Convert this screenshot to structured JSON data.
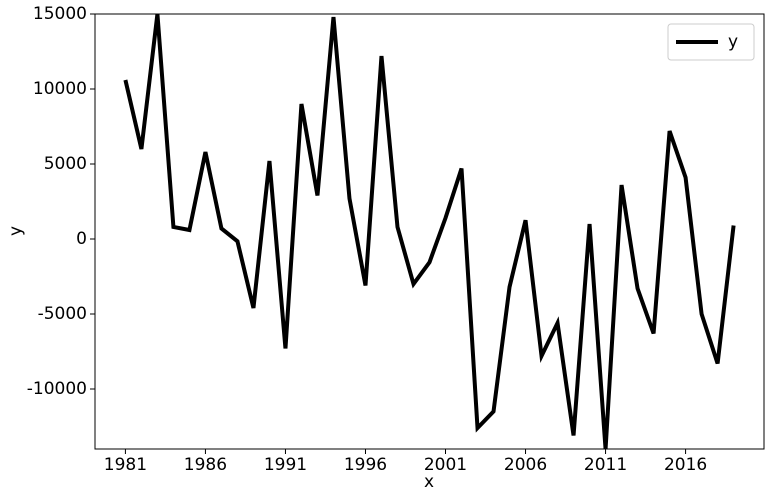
{
  "chart_data": {
    "type": "line",
    "xlabel": "x",
    "ylabel": "y",
    "x": [
      1981,
      1982,
      1983,
      1984,
      1985,
      1986,
      1987,
      1988,
      1989,
      1990,
      1991,
      1992,
      1993,
      1994,
      1995,
      1996,
      1997,
      1998,
      1999,
      2000,
      2001,
      2002,
      2003,
      2004,
      2005,
      2006,
      2007,
      2008,
      2009,
      2010,
      2011,
      2012,
      2013,
      2014,
      2015,
      2016,
      2017,
      2018,
      2019
    ],
    "series": [
      {
        "name": "y",
        "color": "#000000",
        "values": [
          10600,
          6000,
          15000,
          800,
          600,
          5800,
          700,
          -150,
          -4600,
          5200,
          -7300,
          9000,
          2900,
          14800,
          2700,
          -3100,
          12200,
          800,
          -3000,
          -1550,
          1400,
          4700,
          -12600,
          -11500,
          -3200,
          1250,
          -7800,
          -5600,
          -13100,
          1000,
          -14000,
          3600,
          -3300,
          -6300,
          7200,
          4100,
          -5000,
          -8300,
          900
        ]
      }
    ],
    "xlim": [
      1979.1,
      2020.9
    ],
    "xticks": [
      1981,
      1986,
      1991,
      1996,
      2001,
      2006,
      2011,
      2016
    ],
    "ylim": [
      -14000,
      15000
    ],
    "yticks": [
      -10000,
      -5000,
      0,
      5000,
      10000,
      15000
    ],
    "legend": "upper right"
  }
}
